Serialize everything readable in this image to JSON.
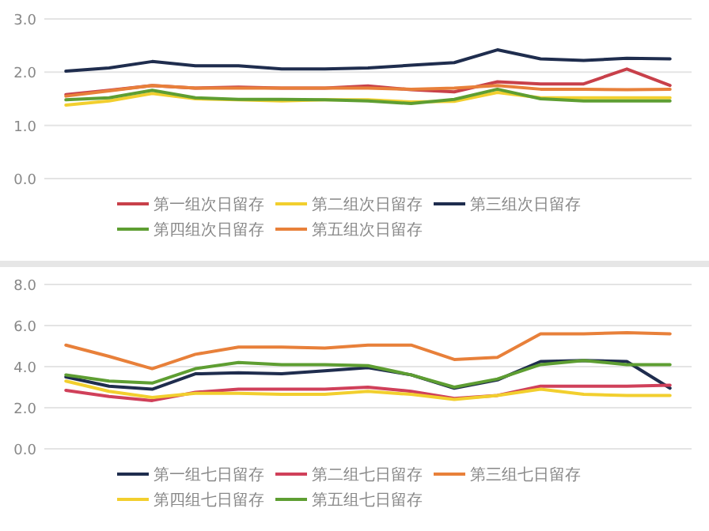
{
  "chart_data": [
    {
      "type": "line",
      "categories": [
        null,
        null,
        null,
        null,
        null,
        null,
        null,
        null,
        null,
        null,
        null,
        null,
        null,
        null,
        null
      ],
      "ylim": [
        0,
        3
      ],
      "yticks": [
        {
          "value": 0,
          "label": "0.0"
        },
        {
          "value": 1,
          "label": "1.0"
        },
        {
          "value": 2,
          "label": "2.0"
        },
        {
          "value": 3,
          "label": "3.0"
        }
      ],
      "grid": "y",
      "legend": "bottom",
      "series": [
        {
          "name": "第一组次日留存",
          "color": "#c8404a",
          "values": [
            1.58,
            1.66,
            1.75,
            1.7,
            1.72,
            1.7,
            1.7,
            1.74,
            1.67,
            1.63,
            1.82,
            1.78,
            1.78,
            2.06,
            1.75
          ]
        },
        {
          "name": "第二组次日留存",
          "color": "#f2cf2e",
          "values": [
            1.38,
            1.46,
            1.6,
            1.5,
            1.48,
            1.46,
            1.48,
            1.48,
            1.44,
            1.45,
            1.62,
            1.52,
            1.52,
            1.52,
            1.52
          ]
        },
        {
          "name": "第三组次日留存",
          "color": "#1f2d4e",
          "values": [
            2.02,
            2.08,
            2.2,
            2.12,
            2.12,
            2.06,
            2.06,
            2.08,
            2.13,
            2.18,
            2.42,
            2.25,
            2.22,
            2.26,
            2.25
          ]
        },
        {
          "name": "第四组次日留存",
          "color": "#5e9e32",
          "values": [
            1.48,
            1.52,
            1.66,
            1.52,
            1.49,
            1.49,
            1.48,
            1.46,
            1.41,
            1.49,
            1.68,
            1.5,
            1.46,
            1.46,
            1.46
          ]
        },
        {
          "name": "第五组次日留存",
          "color": "#e8803a",
          "values": [
            1.55,
            1.65,
            1.75,
            1.7,
            1.7,
            1.7,
            1.7,
            1.7,
            1.68,
            1.7,
            1.75,
            1.68,
            1.68,
            1.67,
            1.68
          ]
        }
      ]
    },
    {
      "type": "line",
      "categories": [
        null,
        null,
        null,
        null,
        null,
        null,
        null,
        null,
        null,
        null,
        null,
        null,
        null,
        null,
        null
      ],
      "ylim": [
        0,
        8
      ],
      "yticks": [
        {
          "value": 0,
          "label": "0.0"
        },
        {
          "value": 2,
          "label": "2.0"
        },
        {
          "value": 4,
          "label": "4.0"
        },
        {
          "value": 6,
          "label": "6.0"
        },
        {
          "value": 8,
          "label": "8.0"
        }
      ],
      "grid": "y",
      "legend": "bottom",
      "series": [
        {
          "name": "第一组七日留存",
          "color": "#1f2d4e",
          "values": [
            3.5,
            3.05,
            2.9,
            3.65,
            3.7,
            3.65,
            3.8,
            3.95,
            3.6,
            2.95,
            3.35,
            4.25,
            4.3,
            4.25,
            2.95
          ]
        },
        {
          "name": "第二组七日留存",
          "color": "#d0405a",
          "values": [
            2.85,
            2.55,
            2.35,
            2.75,
            2.9,
            2.9,
            2.9,
            3.0,
            2.8,
            2.45,
            2.6,
            3.05,
            3.05,
            3.05,
            3.1
          ]
        },
        {
          "name": "第三组七日留存",
          "color": "#e8803a",
          "values": [
            5.05,
            4.5,
            3.9,
            4.6,
            4.95,
            4.95,
            4.9,
            5.05,
            5.05,
            4.35,
            4.45,
            5.6,
            5.6,
            5.65,
            5.6
          ]
        },
        {
          "name": "第四组七日留存",
          "color": "#f2cf2e",
          "values": [
            3.3,
            2.8,
            2.5,
            2.7,
            2.7,
            2.65,
            2.65,
            2.8,
            2.65,
            2.4,
            2.6,
            2.9,
            2.65,
            2.6,
            2.6
          ]
        },
        {
          "name": "第五组七日留存",
          "color": "#5e9e32",
          "values": [
            3.6,
            3.3,
            3.2,
            3.9,
            4.2,
            4.1,
            4.1,
            4.05,
            3.6,
            3.0,
            3.4,
            4.1,
            4.3,
            4.1,
            4.1
          ]
        }
      ]
    }
  ]
}
